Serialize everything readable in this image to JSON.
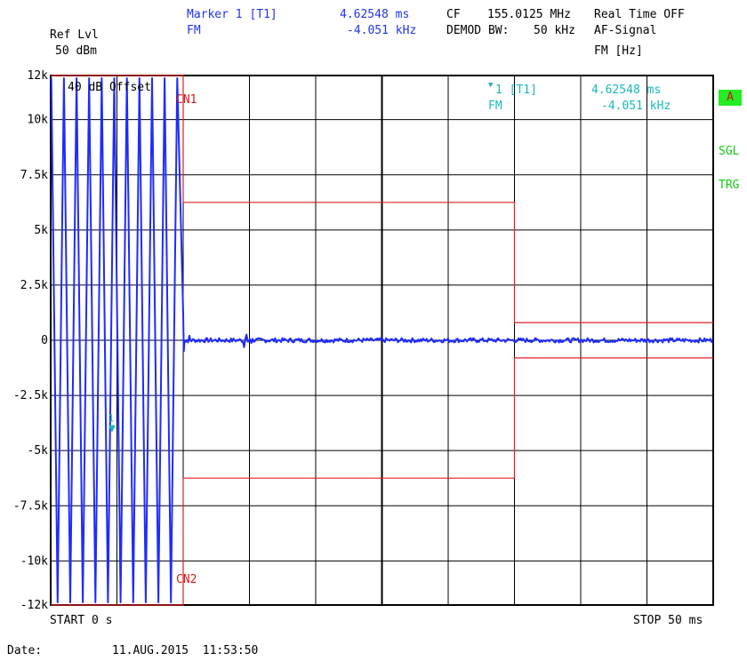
{
  "header": {
    "ref_lvl_label": "Ref Lvl",
    "ref_lvl_value": "50 dBm",
    "marker_label": "Marker 1 [T1]",
    "marker_mode": "FM",
    "marker_time": "4.62548 ms",
    "marker_value": "-4.051 kHz",
    "cf_label": "CF",
    "cf_value": "155.0125 MHz",
    "demod_bw_label": "DEMOD BW:",
    "demod_bw_value": "50 kHz",
    "realtime": "Real Time OFF",
    "af_signal": "AF-Signal",
    "fm_unit": "FM [Hz]"
  },
  "plot": {
    "offset_label": "40 dB Offset",
    "cn1_label": "CN1",
    "cn2_label": "CN2",
    "marker_tag": "1 [T1]",
    "marker_mode": "FM",
    "marker_time": "4.62548 ms",
    "marker_value": "-4.051 kHz",
    "marker_num": "1"
  },
  "side": {
    "badge": "A",
    "sgl": "SGL",
    "trg": "TRG"
  },
  "footer": {
    "start": "START 0 s",
    "stop": "STOP 50 ms",
    "date_label": "Date:",
    "date_value": "11.AUG.2015  11:53:50"
  },
  "colors": {
    "trace": "#1f2bff",
    "limit": "#e02020",
    "marker": "#19b8b8",
    "grid": "#000000"
  },
  "chart_data": {
    "type": "line",
    "title": "",
    "xlabel": "",
    "ylabel": "",
    "xlim": [
      0,
      50
    ],
    "ylim": [
      -12000,
      12000
    ],
    "x_unit": "ms",
    "y_unit": "Hz",
    "grid": true,
    "y_tick_labels": [
      "12k",
      "10k",
      "7.5k",
      "5k",
      "2.5k",
      "0",
      "-2.5k",
      "-5k",
      "-7.5k",
      "-10k",
      "-12k"
    ],
    "y_tick_values": [
      12000,
      10000,
      7500,
      5000,
      2500,
      0,
      -2500,
      -5000,
      -7500,
      -10000,
      -12000
    ],
    "limit_lines": [
      {
        "name": "CN1",
        "points": [
          [
            0,
            12000
          ],
          [
            10,
            12000
          ],
          [
            10,
            6250
          ],
          [
            35,
            6250
          ],
          [
            35,
            800
          ],
          [
            50,
            800
          ]
        ]
      },
      {
        "name": "CN2",
        "points": [
          [
            0,
            -12000
          ],
          [
            10,
            -12000
          ],
          [
            10,
            -6250
          ],
          [
            35,
            -6250
          ],
          [
            35,
            -800
          ],
          [
            50,
            -800
          ]
        ]
      }
    ],
    "trace": {
      "swing_end_ms": 10,
      "swing_period_ms": 0.95,
      "swing_amplitude": 12000,
      "settled_level": 0,
      "settled_noise": 100
    },
    "marker": {
      "x": 4.62548,
      "y": -4051
    }
  }
}
